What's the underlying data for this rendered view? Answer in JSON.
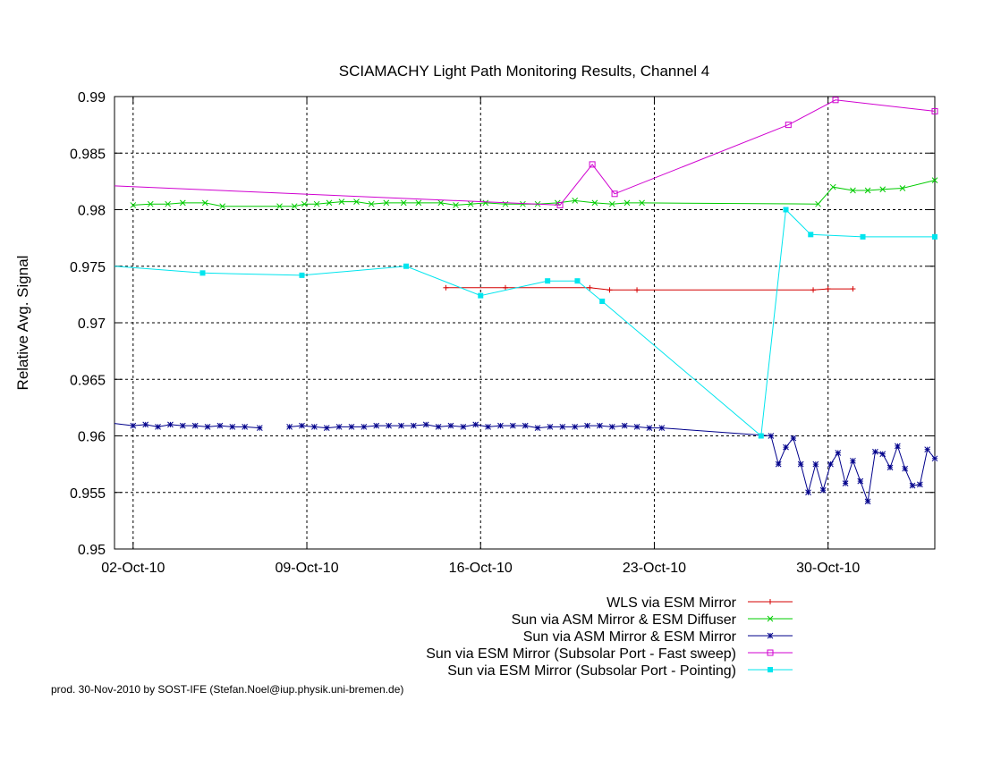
{
  "chart_data": {
    "type": "line",
    "title": "SCIAMACHY Light Path Monitoring Results, Channel 4",
    "xlabel": "",
    "ylabel": "Relative Avg. Signal",
    "xlim": [
      -0.75,
      32.3
    ],
    "ylim": [
      0.95,
      0.99
    ],
    "yticks": [
      "0.95",
      "0.955",
      "0.96",
      "0.965",
      "0.97",
      "0.975",
      "0.98",
      "0.985",
      "0.99"
    ],
    "xticks": [
      {
        "at": 0,
        "label": "02-Oct-10"
      },
      {
        "at": 7,
        "label": "09-Oct-10"
      },
      {
        "at": 14,
        "label": "16-Oct-10"
      },
      {
        "at": 21,
        "label": "23-Oct-10"
      },
      {
        "at": 28,
        "label": "30-Oct-10"
      }
    ],
    "x_unit_note": "",
    "grid": true,
    "legend_position": "bottom-right",
    "series": [
      {
        "name": "WLS via ESM Mirror",
        "color": "#d40000",
        "marker": "plus",
        "x": [
          12.6,
          15.0,
          18.4,
          19.2,
          20.3,
          27.4,
          28.0,
          29.0
        ],
        "y": [
          0.9731,
          0.9731,
          0.9731,
          0.9729,
          0.9729,
          0.9729,
          0.973,
          0.973
        ]
      },
      {
        "name": "Sun via ASM Mirror & ESM Diffuser",
        "color": "#00cc00",
        "marker": "x",
        "x": [
          0.0,
          0.7,
          1.4,
          2.0,
          2.9,
          3.6,
          5.9,
          6.5,
          6.9,
          7.4,
          7.9,
          8.4,
          9.0,
          9.6,
          10.2,
          10.9,
          11.5,
          12.4,
          13.0,
          13.6,
          14.2,
          15.0,
          15.7,
          16.3,
          17.1,
          17.8,
          18.6,
          19.3,
          19.9,
          20.5,
          27.6,
          28.2,
          29.0,
          29.6,
          30.2,
          31.0,
          32.3
        ],
        "y": [
          0.9804,
          0.9805,
          0.9805,
          0.9806,
          0.9806,
          0.9803,
          0.9803,
          0.9803,
          0.9805,
          0.9805,
          0.9806,
          0.9807,
          0.9807,
          0.9805,
          0.9806,
          0.9806,
          0.9806,
          0.9806,
          0.9804,
          0.9805,
          0.9806,
          0.9805,
          0.9805,
          0.9805,
          0.9806,
          0.9808,
          0.9806,
          0.9805,
          0.9806,
          0.9806,
          0.9805,
          0.982,
          0.9817,
          0.9817,
          0.9818,
          0.9819,
          0.9826
        ]
      },
      {
        "name": "Sun via ASM Mirror & ESM Mirror",
        "color": "#00008b",
        "marker": "star",
        "segments": [
          {
            "x": [
              -0.75,
              0.0,
              0.5,
              1.0,
              1.5,
              2.0,
              2.5,
              3.0,
              3.5,
              4.0,
              4.5,
              5.1
            ],
            "y": [
              0.9611,
              0.9609,
              0.961,
              0.9608,
              0.961,
              0.9609,
              0.9609,
              0.9608,
              0.9609,
              0.9608,
              0.9608,
              0.9607
            ]
          },
          {
            "x": [
              6.3,
              6.8,
              7.3,
              7.8,
              8.3,
              8.8,
              9.3,
              9.8,
              10.3,
              10.8,
              11.3,
              11.8,
              12.3,
              12.8,
              13.3,
              13.8,
              14.3,
              14.8,
              15.3,
              15.8,
              16.3,
              16.8,
              17.3,
              17.8,
              18.3,
              18.8,
              19.3,
              19.8,
              20.3,
              20.8,
              21.3,
              25.7,
              26.0,
              26.3,
              26.6,
              26.9,
              27.2,
              27.5,
              27.8,
              28.1,
              28.4,
              28.7,
              29.0,
              29.3,
              29.6,
              29.9,
              30.2,
              30.5,
              30.8,
              31.1,
              31.4,
              31.7,
              32.0,
              32.3
            ],
            "y": [
              0.9608,
              0.9609,
              0.9608,
              0.9607,
              0.9608,
              0.9608,
              0.9608,
              0.9609,
              0.9609,
              0.9609,
              0.9609,
              0.961,
              0.9608,
              0.9609,
              0.9608,
              0.961,
              0.9608,
              0.9609,
              0.9609,
              0.9609,
              0.9607,
              0.9608,
              0.9608,
              0.9608,
              0.9609,
              0.9609,
              0.9608,
              0.9609,
              0.9608,
              0.9607,
              0.9607,
              0.96,
              0.9575,
              0.959,
              0.9598,
              0.9575,
              0.955,
              0.9575,
              0.9552,
              0.9575,
              0.9585,
              0.9558,
              0.9578,
              0.956,
              0.9542,
              0.9586,
              0.9584,
              0.9572,
              0.9591,
              0.9571,
              0.9556,
              0.9557,
              0.9588,
              0.958
            ]
          }
        ]
      },
      {
        "name": "Sun via ESM Mirror (Subsolar Port - Fast sweep)",
        "color": "#d000d0",
        "marker": "square",
        "x": [
          -0.75,
          17.2,
          18.5,
          19.4,
          26.4,
          28.3,
          32.3
        ],
        "y": [
          0.9821,
          0.9804,
          0.984,
          0.9814,
          0.9875,
          0.9897,
          0.9887
        ]
      },
      {
        "name": "Sun via ESM Mirror (Subsolar Port - Pointing)",
        "color": "#00e5ee",
        "marker": "filled-square",
        "x": [
          -0.75,
          2.8,
          6.8,
          11.0,
          14.0,
          16.7,
          17.9,
          18.9,
          25.3,
          26.3,
          27.3,
          29.4,
          32.3
        ],
        "y": [
          0.975,
          0.9744,
          0.9742,
          0.975,
          0.9724,
          0.9737,
          0.9737,
          0.9719,
          0.96,
          0.98,
          0.9778,
          0.9776,
          0.9776
        ]
      }
    ]
  },
  "footer": {
    "credit": "prod. 30-Nov-2010 by SOST-IFE (Stefan.Noel@iup.physik.uni-bremen.de)"
  }
}
